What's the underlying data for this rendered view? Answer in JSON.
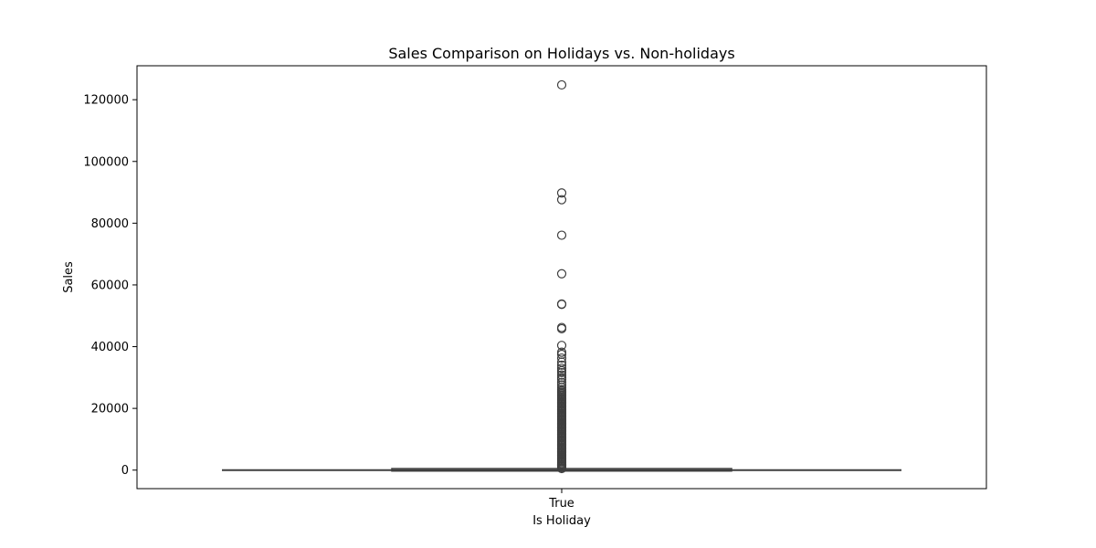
{
  "chart_data": {
    "type": "box",
    "title": "Sales Comparison on Holidays vs. Non-holidays",
    "xlabel": "Is Holiday",
    "ylabel": "Sales",
    "categories": [
      "True"
    ],
    "ylim": [
      -6000,
      131000
    ],
    "yticks": [
      0,
      20000,
      40000,
      60000,
      80000,
      100000,
      120000
    ],
    "ytick_labels": [
      "0",
      "20000",
      "40000",
      "60000",
      "80000",
      "100000",
      "120000"
    ],
    "grid": false,
    "legend": "none",
    "colors": {
      "box": "#3f3f3f",
      "outlier_stroke": "#3f3f3f",
      "axes": "#000000"
    },
    "boxes": [
      {
        "category": "True",
        "whisker_low": 0,
        "q1": 0,
        "median": 0,
        "q3": 200,
        "whisker_high": 200,
        "outliers": [
          124800,
          89800,
          87600,
          76100,
          63600,
          53800,
          53700,
          46200,
          45800,
          40400,
          38200,
          37500,
          36300,
          35000,
          34000,
          33000,
          32200,
          31600,
          30800,
          30000,
          29400,
          28400,
          27600,
          26800,
          26100,
          25600,
          25200,
          24800,
          24400,
          24000,
          23600,
          23200,
          22800,
          22400,
          22000,
          21600,
          21200,
          20800,
          20400,
          20000,
          19600,
          19200,
          18800,
          18400,
          18000,
          17600,
          17200,
          16800,
          16400,
          16000,
          15600,
          15200,
          14800,
          14400,
          14000,
          13600,
          13200,
          12800,
          12400,
          12000,
          11600,
          11200,
          10800,
          10400,
          10000,
          9600,
          9200,
          8800,
          8400,
          8000,
          7600,
          7200,
          6800,
          6400,
          6000,
          5600,
          5200,
          4800,
          4400,
          4000,
          3600,
          3200,
          2800,
          2400,
          2000,
          1600,
          1200,
          800,
          500
        ]
      }
    ]
  }
}
